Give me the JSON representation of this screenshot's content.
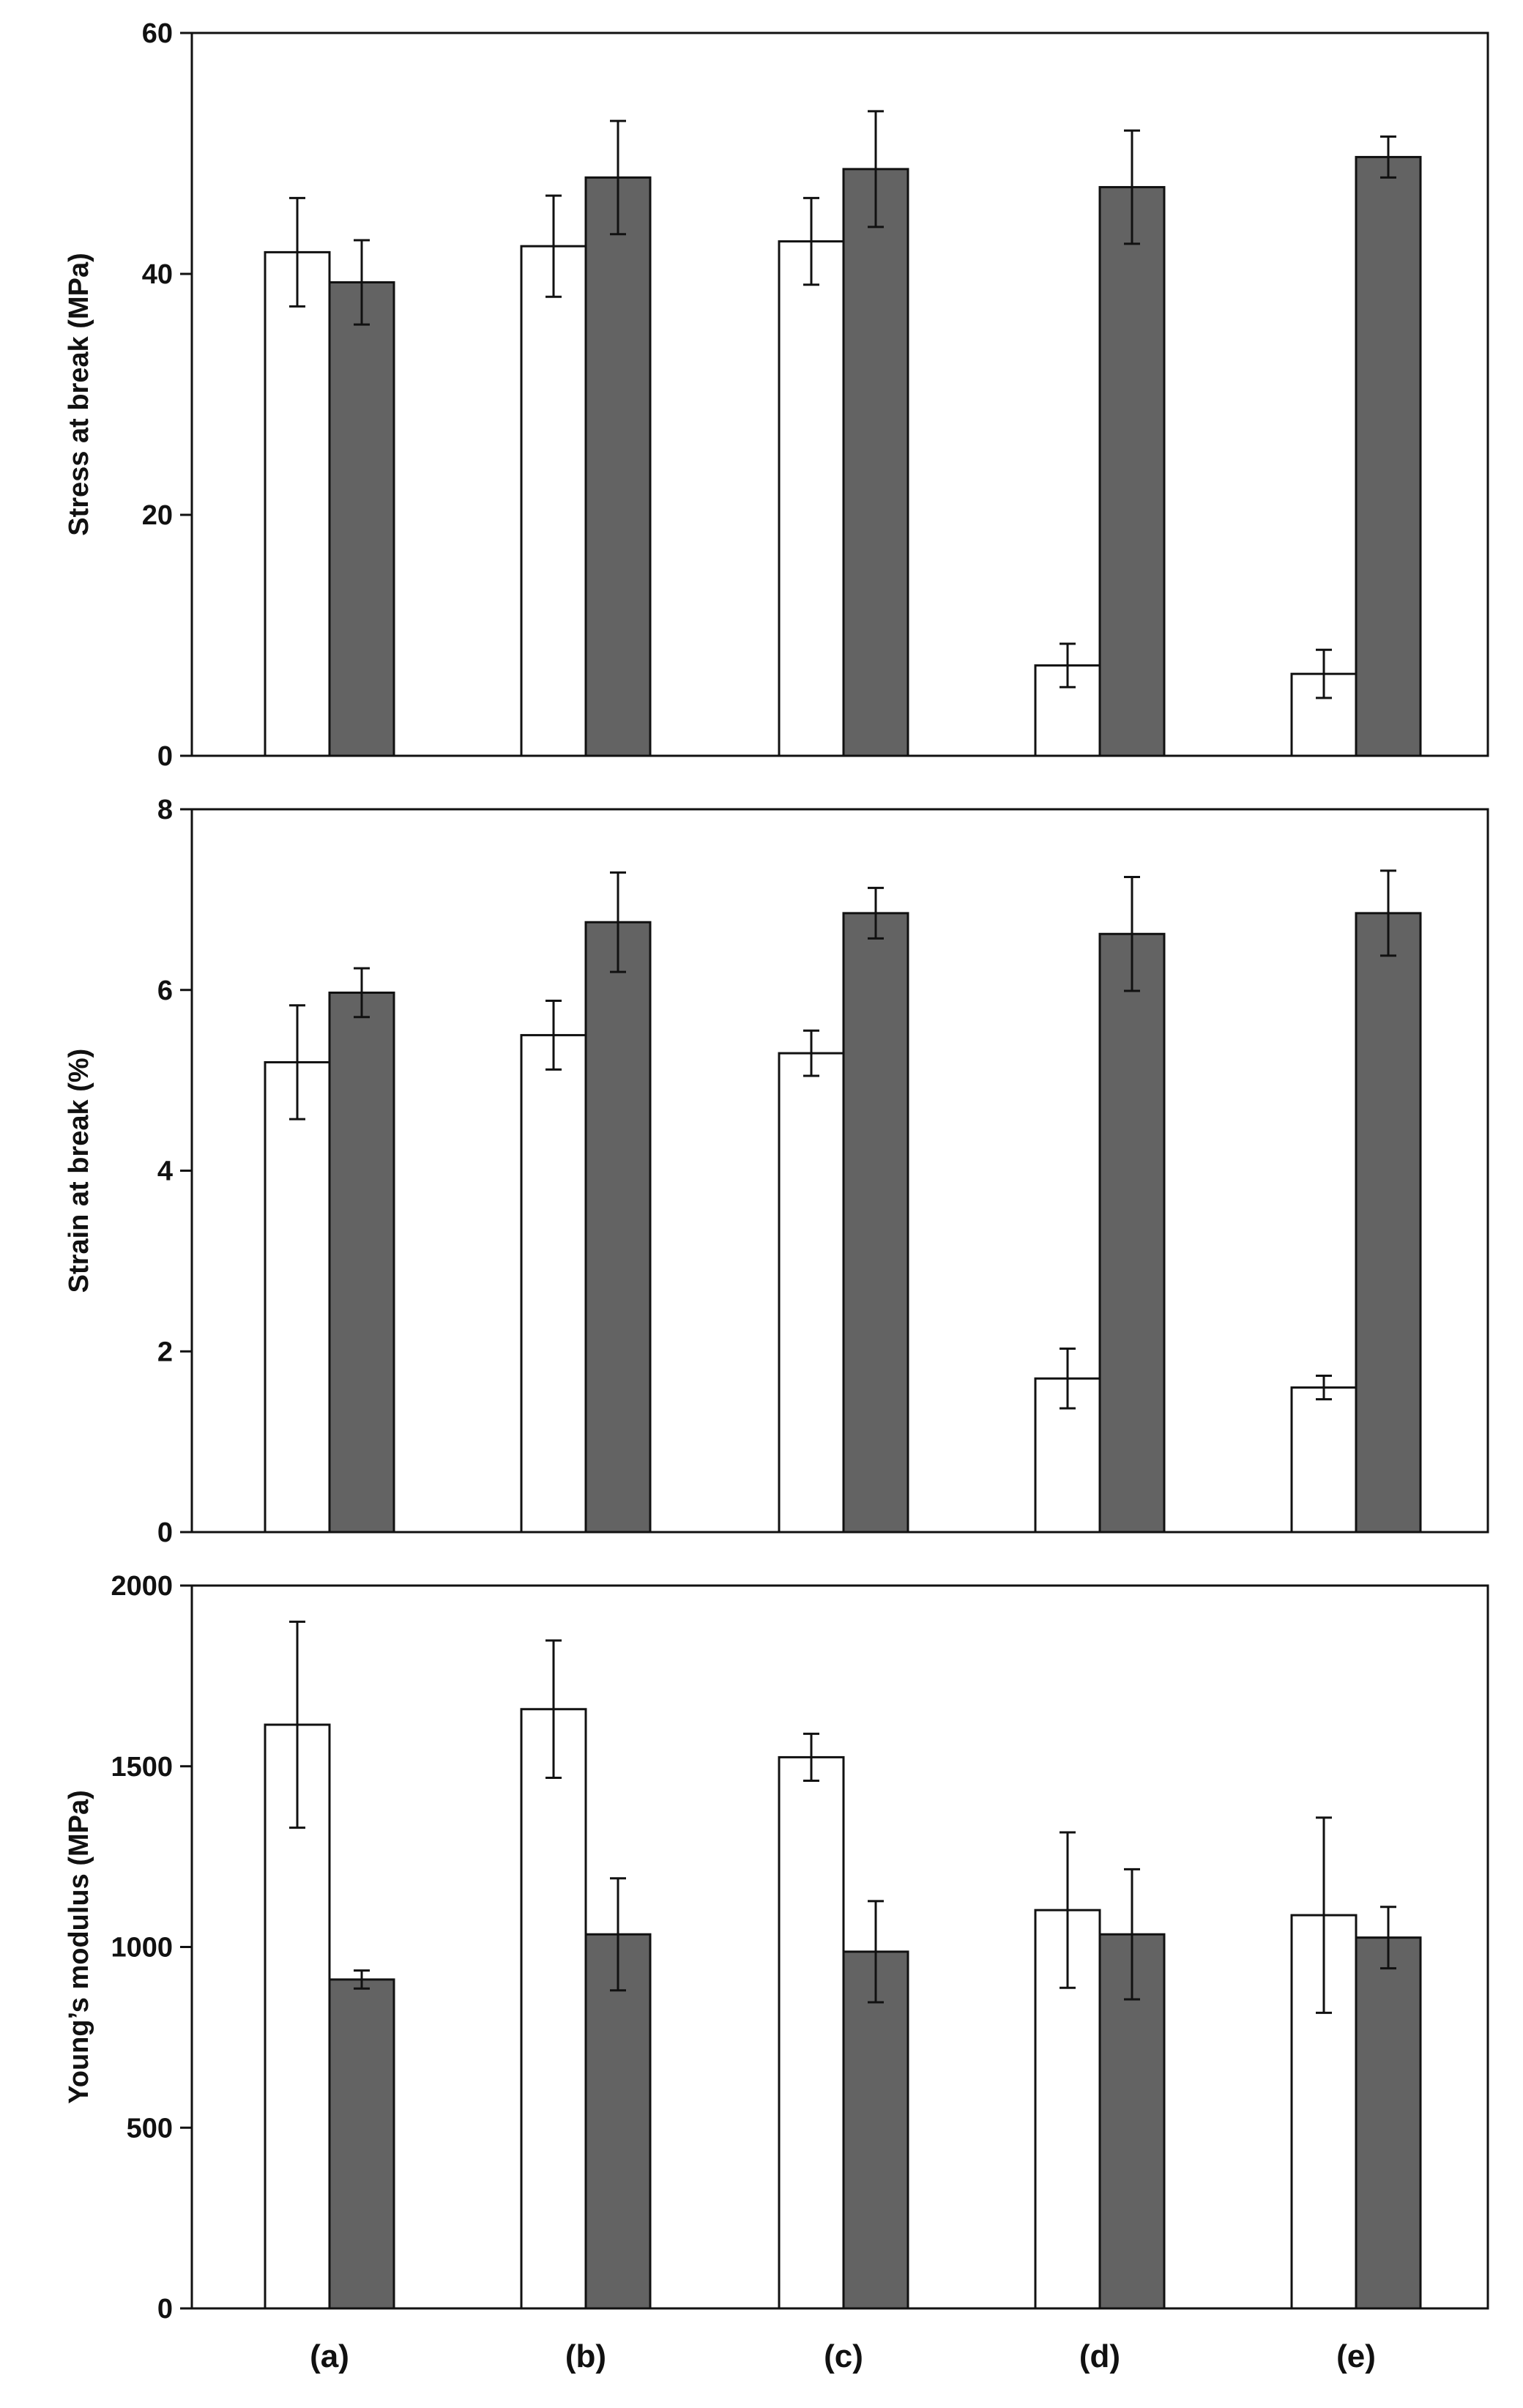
{
  "categories": [
    "(a)",
    "(b)",
    "(c)",
    "(d)",
    "(e)"
  ],
  "colors": {
    "series_a": "#ffffff",
    "series_b": "#636363",
    "stroke": "#111111"
  },
  "chart_data": [
    {
      "type": "bar",
      "ylabel": "Stress at break (MPa)",
      "ylim": [
        0,
        60
      ],
      "yticks": [
        0,
        20,
        40,
        60
      ],
      "categories": [
        "",
        "",
        "",
        "",
        ""
      ],
      "series": [
        {
          "values": [
            41.8,
            42.3,
            42.7,
            7.5,
            6.8
          ],
          "errors": [
            4.5,
            4.2,
            3.6,
            1.8,
            2.0
          ]
        },
        {
          "values": [
            39.3,
            48.0,
            48.7,
            47.2,
            49.7
          ],
          "errors": [
            3.5,
            4.7,
            4.8,
            4.7,
            1.7
          ]
        }
      ]
    },
    {
      "type": "bar",
      "ylabel": "Strain at break (%)",
      "ylim": [
        0,
        8
      ],
      "yticks": [
        0,
        2,
        4,
        6,
        8
      ],
      "categories": [
        "",
        "",
        "",
        "",
        ""
      ],
      "series": [
        {
          "values": [
            5.2,
            5.5,
            5.3,
            1.7,
            1.6
          ],
          "errors": [
            0.63,
            0.38,
            0.25,
            0.33,
            0.13
          ]
        },
        {
          "values": [
            5.97,
            6.75,
            6.85,
            6.62,
            6.85
          ],
          "errors": [
            0.27,
            0.55,
            0.28,
            0.63,
            0.47
          ]
        }
      ]
    },
    {
      "type": "bar",
      "ylabel": "Young’s modulus (MPa)",
      "ylim": [
        0,
        2000
      ],
      "yticks": [
        0,
        500,
        1000,
        1500,
        2000
      ],
      "categories": [
        "(a)",
        "(b)",
        "(c)",
        "(d)",
        "(e)"
      ],
      "series": [
        {
          "values": [
            1615,
            1658,
            1525,
            1102,
            1088
          ],
          "errors": [
            285,
            190,
            65,
            215,
            270
          ]
        },
        {
          "values": [
            910,
            1035,
            987,
            1035,
            1026
          ],
          "errors": [
            25,
            155,
            140,
            180,
            85
          ]
        }
      ]
    }
  ]
}
